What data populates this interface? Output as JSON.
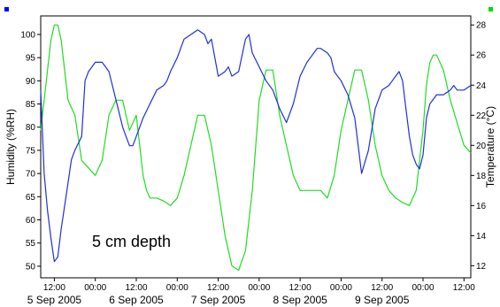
{
  "chart_data": {
    "type": "line",
    "annotation": "5 cm depth",
    "ylabel_left": "Humidity (%RH)",
    "ylabel_right": "Temperature (°C)",
    "ylim_left": [
      47.5,
      104
    ],
    "ylim_right": [
      11.2,
      28.6
    ],
    "yticks_left": [
      "50",
      "55",
      "60",
      "65",
      "70",
      "75",
      "80",
      "85",
      "90",
      "95",
      "100"
    ],
    "yticks_right": [
      "12",
      "14",
      "16",
      "18",
      "20",
      "22",
      "24",
      "26",
      "28"
    ],
    "xlim_hours": [
      8,
      134
    ],
    "xticks": [
      "12:00",
      "00:00",
      "12:00",
      "00:00",
      "12:00",
      "00:00",
      "12:00",
      "00:00",
      "12:00",
      "00:00",
      "12:00"
    ],
    "date_labels": [
      "5 Sep 2005",
      "6 Sep 2005",
      "7 Sep 2005",
      "8 Sep 2005",
      "9 Sep 2005"
    ],
    "legend_markers": [
      {
        "side": "left",
        "color": "#0000ff"
      },
      {
        "side": "right",
        "color": "#00dd00"
      }
    ],
    "series": [
      {
        "axis": "left",
        "color": "#2030d8",
        "x": [
          8,
          9,
          10,
          11,
          12,
          13,
          14,
          16,
          17,
          18,
          20,
          21,
          22,
          23,
          24,
          26,
          28,
          30,
          32,
          33,
          34,
          35,
          36,
          38,
          40,
          42,
          44,
          45,
          46,
          48,
          50,
          52,
          54,
          56,
          57,
          58,
          60,
          62,
          63,
          64,
          66,
          68,
          69,
          70,
          72,
          74,
          76,
          78,
          80,
          82,
          84,
          86,
          87,
          88,
          89,
          90,
          92,
          93,
          94,
          96,
          98,
          100,
          102,
          104,
          106,
          108,
          110,
          111,
          112,
          113,
          114,
          115,
          116,
          117,
          118,
          119,
          120,
          121,
          122,
          124,
          126,
          128,
          129,
          130,
          132,
          134
        ],
        "y": [
          88,
          70,
          62,
          56,
          51,
          52,
          58,
          68,
          73,
          75,
          78,
          90,
          92,
          93,
          94,
          94,
          92,
          86,
          80,
          78,
          76,
          76,
          78,
          82,
          85,
          88,
          89,
          90,
          92,
          95,
          99,
          100,
          101,
          100,
          98,
          99,
          91,
          92,
          93,
          91,
          92,
          99,
          100,
          96,
          93,
          90,
          88,
          84,
          81,
          85,
          91,
          94,
          95,
          96,
          97,
          97,
          96,
          95,
          92,
          90,
          87,
          82,
          70,
          75,
          84,
          88,
          89,
          90,
          91,
          92,
          90,
          84,
          78,
          74,
          72,
          71,
          74,
          82,
          85,
          87,
          87,
          88,
          89,
          88,
          88,
          89
        ]
      },
      {
        "axis": "right",
        "color": "#20dd20",
        "x": [
          8,
          9,
          10,
          11,
          12,
          13,
          14,
          16,
          18,
          20,
          22,
          24,
          26,
          28,
          30,
          32,
          34,
          36,
          38,
          39,
          40,
          42,
          44,
          46,
          48,
          50,
          52,
          54,
          56,
          58,
          60,
          62,
          64,
          66,
          68,
          70,
          72,
          74,
          76,
          78,
          80,
          82,
          84,
          86,
          88,
          90,
          92,
          94,
          96,
          98,
          100,
          102,
          104,
          106,
          108,
          110,
          112,
          114,
          116,
          118,
          120,
          121,
          122,
          123,
          124,
          126,
          128,
          130,
          132,
          134
        ],
        "y": [
          21,
          23,
          25,
          27,
          28,
          28,
          27,
          23,
          22,
          19,
          18.5,
          18,
          19,
          22,
          23,
          23,
          21,
          22,
          18,
          17,
          16.5,
          16.5,
          16.3,
          16,
          16.5,
          18,
          20,
          22,
          22,
          20,
          17,
          14,
          12,
          11.7,
          13,
          17,
          23,
          25,
          25,
          22,
          20,
          18,
          17,
          17,
          17,
          17,
          16.5,
          18,
          21,
          23,
          25,
          25,
          23,
          20,
          18,
          17,
          16.5,
          16.2,
          16,
          17,
          21,
          24,
          25.5,
          26,
          26,
          25,
          23,
          21.5,
          20,
          19.5
        ]
      }
    ]
  }
}
